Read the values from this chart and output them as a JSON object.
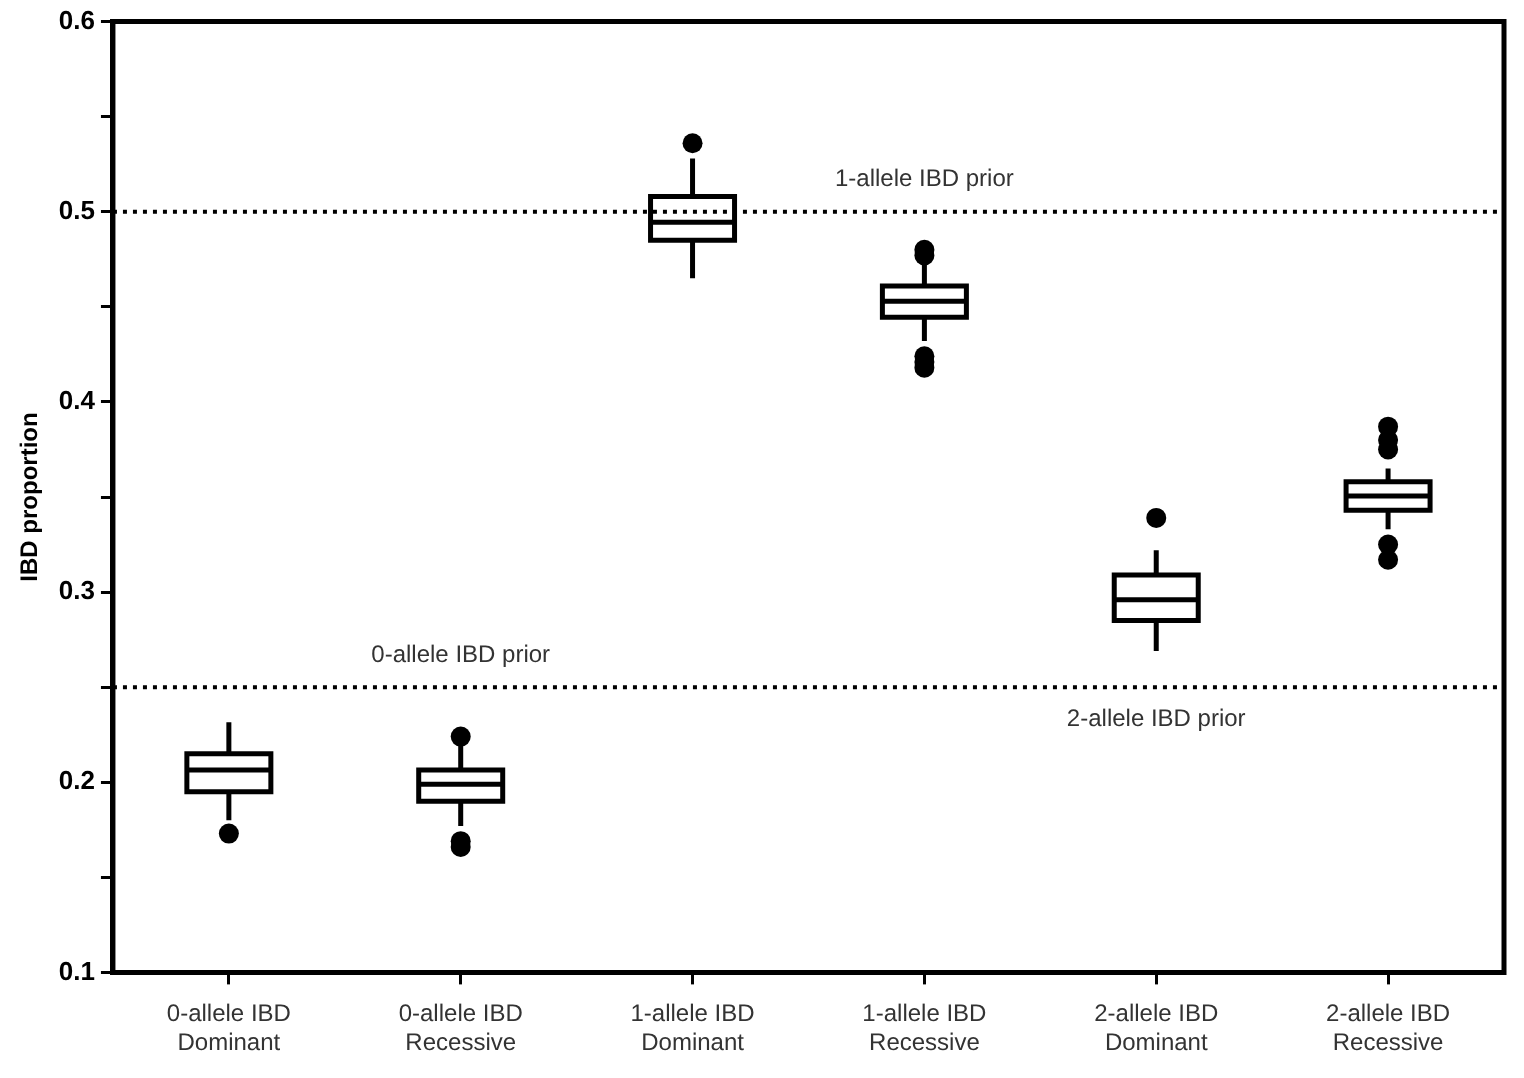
{
  "chart_data": {
    "type": "box",
    "ylabel": "IBD proportion",
    "categories": [
      "0-allele IBD Dominant",
      "0-allele IBD Recessive",
      "1-allele IBD Dominant",
      "1-allele IBD Recessive",
      "2-allele IBD Dominant",
      "2-allele IBD Recessive"
    ],
    "boxes": [
      {
        "low": 0.18,
        "q1": 0.195,
        "median": 0.2065,
        "q3": 0.215,
        "high": 0.2315,
        "outliers": [
          0.173
        ]
      },
      {
        "low": 0.177,
        "q1": 0.19,
        "median": 0.199,
        "q3": 0.2065,
        "high": 0.219,
        "outliers": [
          0.224,
          0.169,
          0.166
        ]
      },
      {
        "low": 0.465,
        "q1": 0.485,
        "median": 0.4945,
        "q3": 0.508,
        "high": 0.528,
        "outliers": [
          0.536
        ]
      },
      {
        "low": 0.432,
        "q1": 0.4445,
        "median": 0.453,
        "q3": 0.461,
        "high": 0.474,
        "outliers": [
          0.48,
          0.477,
          0.424,
          0.421,
          0.418
        ]
      },
      {
        "low": 0.269,
        "q1": 0.285,
        "median": 0.296,
        "q3": 0.309,
        "high": 0.322,
        "outliers": [
          0.339
        ]
      },
      {
        "low": 0.333,
        "q1": 0.343,
        "median": 0.3505,
        "q3": 0.358,
        "high": 0.365,
        "outliers": [
          0.387,
          0.38,
          0.375,
          0.325,
          0.317
        ]
      }
    ],
    "color": "#000000",
    "ylim": [
      0.1,
      0.6
    ],
    "yticks": [
      0.1,
      {
        "value": 0.15,
        "label": null
      },
      0.2,
      {
        "value": 0.25,
        "label": null
      },
      0.3,
      {
        "value": 0.35,
        "label": null
      },
      0.4,
      {
        "value": 0.45,
        "label": null
      },
      0.5,
      {
        "value": 0.55,
        "label": null
      },
      0.6
    ],
    "grid": false,
    "legend": false,
    "ref_lines": [
      {
        "axis": "y",
        "value": 0.5,
        "line_style": "dotted",
        "color": "#000000"
      },
      {
        "axis": "y",
        "value": 0.25,
        "line_style": "dotted",
        "color": "#000000"
      }
    ],
    "annotations": [
      {
        "text": "1-allele IBD prior",
        "x": "1-allele IBD Recessive",
        "y": 0.5
      },
      {
        "text": "0-allele IBD prior",
        "x": "0-allele IBD Recessive",
        "y": 0.25
      },
      {
        "text": "2-allele IBD prior",
        "x": "2-allele IBD Dominant",
        "y": 0.25
      }
    ]
  }
}
